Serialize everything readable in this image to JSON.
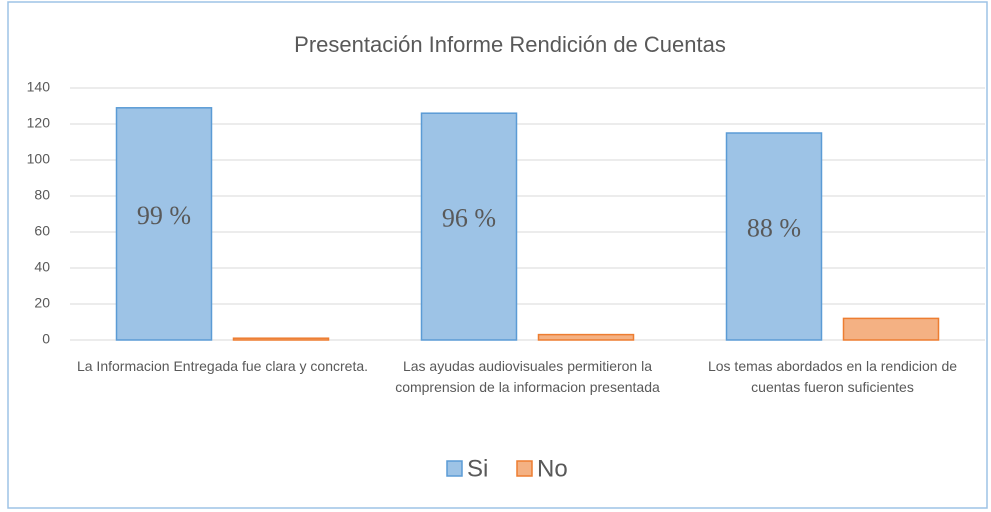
{
  "chart_data": {
    "type": "bar",
    "title": "Presentación  Informe  Rendición  de  Cuentas",
    "categories": [
      "La Informacion Entregada fue clara y concreta.",
      "Las ayudas audiovisuales permitieron la comprension de la informacion presentada",
      "Los temas abordados en la rendicion de cuentas fueron suficientes"
    ],
    "series": [
      {
        "name": "Si",
        "color": "#9dc3e6",
        "stroke": "#5b9bd5",
        "values": [
          129,
          126,
          115
        ]
      },
      {
        "name": "No",
        "color": "#f4b183",
        "stroke": "#ed7d31",
        "values": [
          1,
          3,
          12
        ]
      }
    ],
    "annotations": [
      "99 %",
      "96 %",
      "88 %"
    ],
    "ylim": [
      0,
      140
    ],
    "yticks": [
      0,
      20,
      40,
      60,
      80,
      100,
      120,
      140
    ],
    "grid": true,
    "legend": "bottom"
  }
}
